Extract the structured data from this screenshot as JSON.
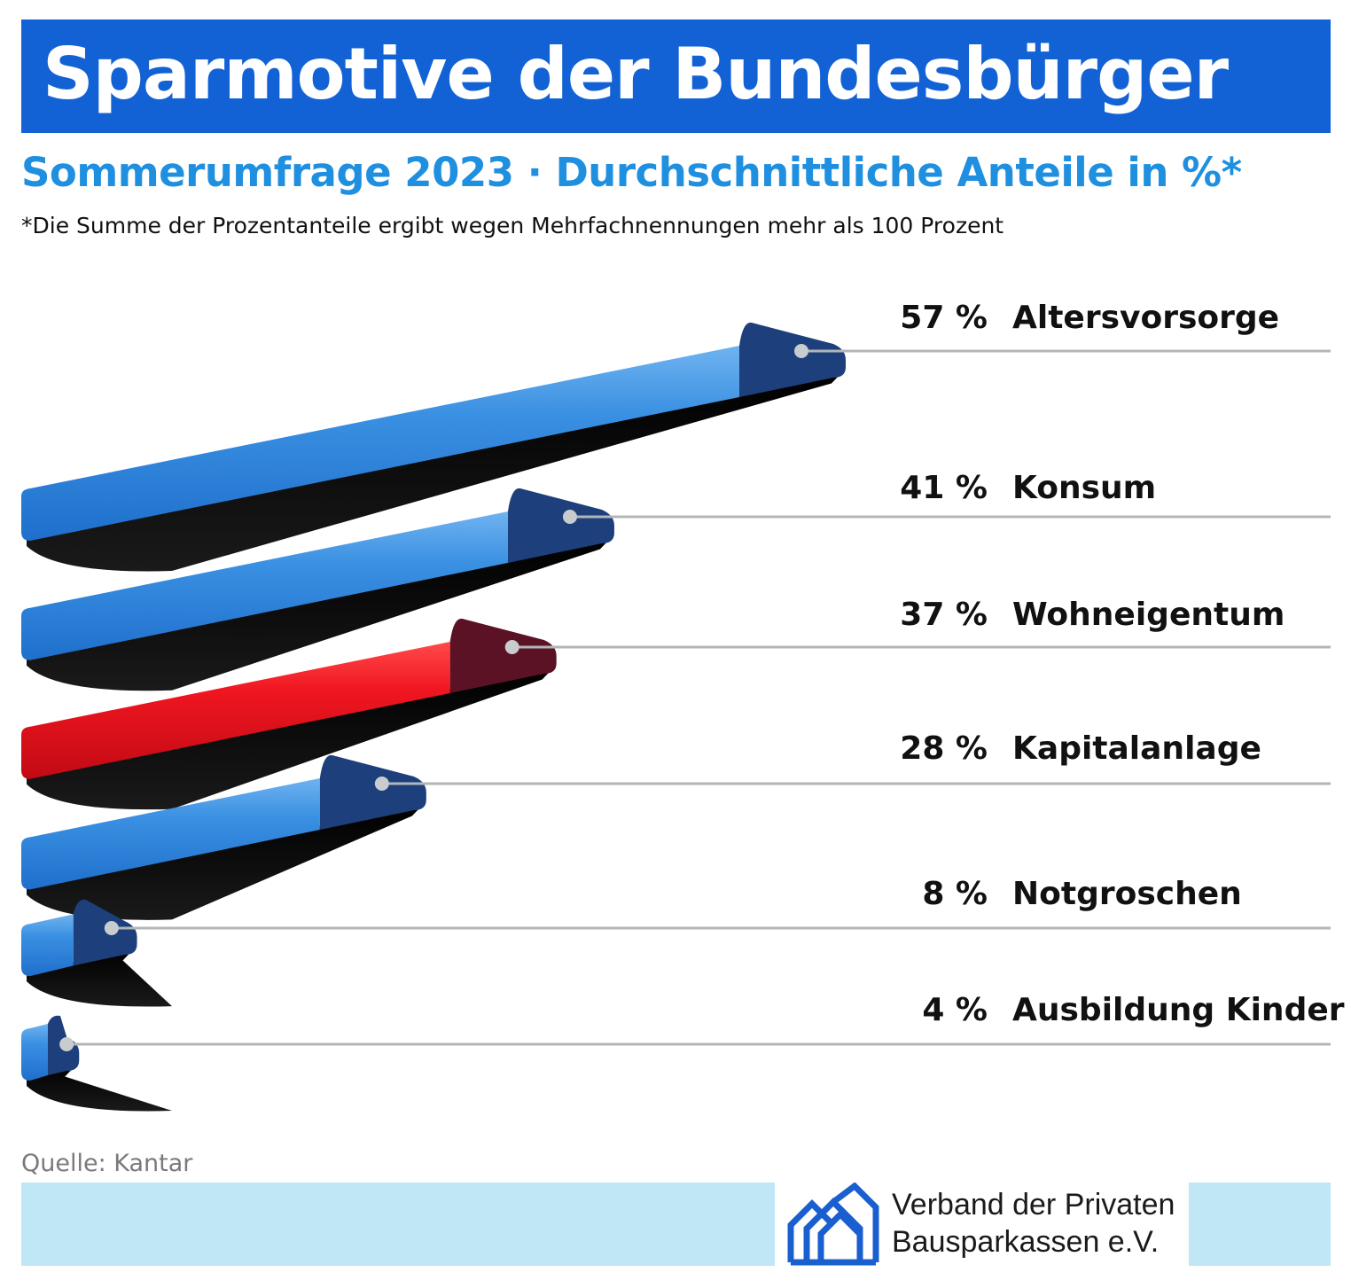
{
  "header": {
    "title": "Sparmotive der Bundesbürger",
    "subtitle": "Sommerumfrage 2023 · Durchschnittliche Anteile in %*",
    "footnote": "*Die Summe der Prozentanteile ergibt wegen Mehrfachnennungen mehr als 100 Prozent"
  },
  "chart_data": {
    "type": "bar",
    "categories": [
      "Altersvorsorge",
      "Konsum",
      "Wohneigentum",
      "Kapitalanlage",
      "Notgroschen",
      "Ausbildung Kinder"
    ],
    "values": [
      57,
      41,
      37,
      28,
      8,
      4
    ],
    "value_labels": [
      "57 %",
      "41 %",
      "37 %",
      "28 %",
      "8 %",
      "4 %"
    ],
    "highlight_category": "Wohneigentum",
    "colors": {
      "bar": "#2f86df",
      "bar_end": "#1d3f7c",
      "highlight": "#e8141e",
      "highlight_end": "#5a1224",
      "leader": "#b2b6b9"
    }
  },
  "footer": {
    "source": "Quelle: Kantar",
    "org_line1": "Verband der Privaten",
    "org_line2": "Bausparkassen e.V.",
    "logo_icon": "houses-logo-icon"
  },
  "colors": {
    "title_bar": "#1262d6",
    "subtitle": "#1f8fe0",
    "band": "#bfe7f6",
    "logo": "#1a5fd0"
  }
}
